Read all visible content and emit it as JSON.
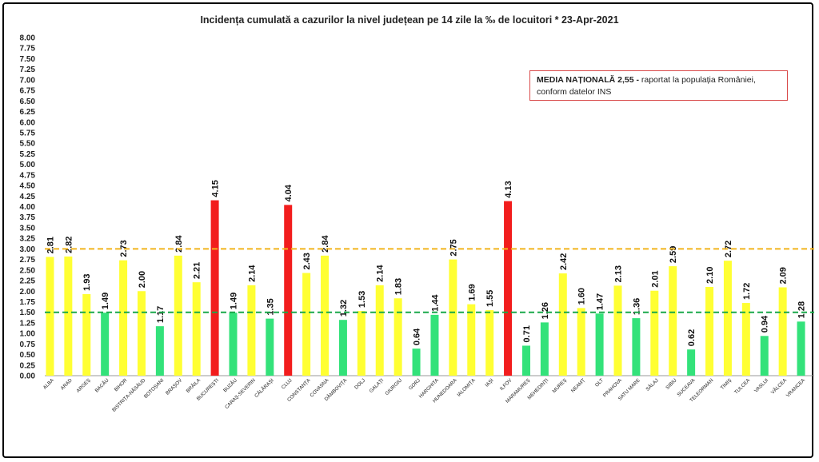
{
  "title": "Incidența cumulată a cazurilor la nivel județean pe 14 zile la ‰ de locuitori *   23-Apr-2021",
  "media_box": {
    "label": "MEDIA NAȚIONALĂ  2,55 -",
    "text_line1": " raportat la populația României,",
    "text_line2": "conform datelor INS"
  },
  "colors": {
    "yellow": "#ffff33",
    "green": "#33e27a",
    "red": "#f21d1d",
    "orange_line": "#f2b51c",
    "green_line": "#1aa84a"
  },
  "chart_data": {
    "type": "bar",
    "title": "Incidența cumulată a cazurilor la nivel județean pe 14 zile la ‰ de locuitori *   23-Apr-2021",
    "ylim": [
      0,
      8
    ],
    "ytick_step": 0.25,
    "reference_lines": [
      3.0,
      1.5
    ],
    "categories": [
      "ALBA",
      "ARAD",
      "ARGEȘ",
      "BACĂU",
      "BIHOR",
      "BISTRIȚA-NĂSĂUD",
      "BOTOȘANI",
      "BRAȘOV",
      "BRĂILA",
      "BUCUREȘTI",
      "BUZĂU",
      "CARAȘ-SEVERIN",
      "CĂLĂRAȘI",
      "CLUJ",
      "CONSTANȚA",
      "COVASNA",
      "DÂMBOVIȚA",
      "DOLJ",
      "GALAȚI",
      "GIURGIU",
      "GORJ",
      "HARGHITA",
      "HUNEDOARA",
      "IALOMIȚA",
      "IAȘI",
      "ILFOV",
      "MARAMUREȘ",
      "MEHEDINȚI",
      "MUREȘ",
      "NEAMȚ",
      "OLT",
      "PRAHOVA",
      "SATU MARE",
      "SĂLAJ",
      "SIBIU",
      "SUCEAVA",
      "TELEORMAN",
      "TIMIȘ",
      "TULCEA",
      "VASLUI",
      "VÂLCEA",
      "VRANCEA"
    ],
    "values": [
      2.81,
      2.82,
      1.93,
      1.49,
      2.73,
      2.0,
      1.17,
      2.84,
      2.21,
      4.15,
      1.49,
      2.14,
      1.35,
      4.04,
      2.43,
      2.84,
      1.32,
      1.53,
      2.14,
      1.83,
      0.64,
      1.44,
      2.75,
      1.69,
      1.55,
      4.13,
      0.71,
      1.26,
      2.42,
      1.6,
      1.47,
      2.13,
      1.36,
      2.01,
      2.59,
      0.62,
      2.1,
      2.72,
      1.72,
      0.94,
      2.09,
      1.28
    ],
    "labels": [
      "2.81",
      "2.82",
      "1.93",
      "1.49",
      "2.73",
      "2.00",
      "1.17",
      "2.84",
      "2.21",
      "4.15",
      "1.49",
      "2.14",
      "1.35",
      "4.04",
      "2.43",
      "2.84",
      "1.32",
      "1.53",
      "2.14",
      "1.83",
      "0.64",
      "1.44",
      "2.75",
      "1.69",
      "1.55",
      "4.13",
      "0.71",
      "1.26",
      "2.42",
      "1.60",
      "1.47",
      "2.13",
      "1.36",
      "2.01",
      "2.59",
      "0.62",
      "2.10",
      "2.72",
      "1.72",
      "0.94",
      "2.09",
      "1.28"
    ]
  }
}
